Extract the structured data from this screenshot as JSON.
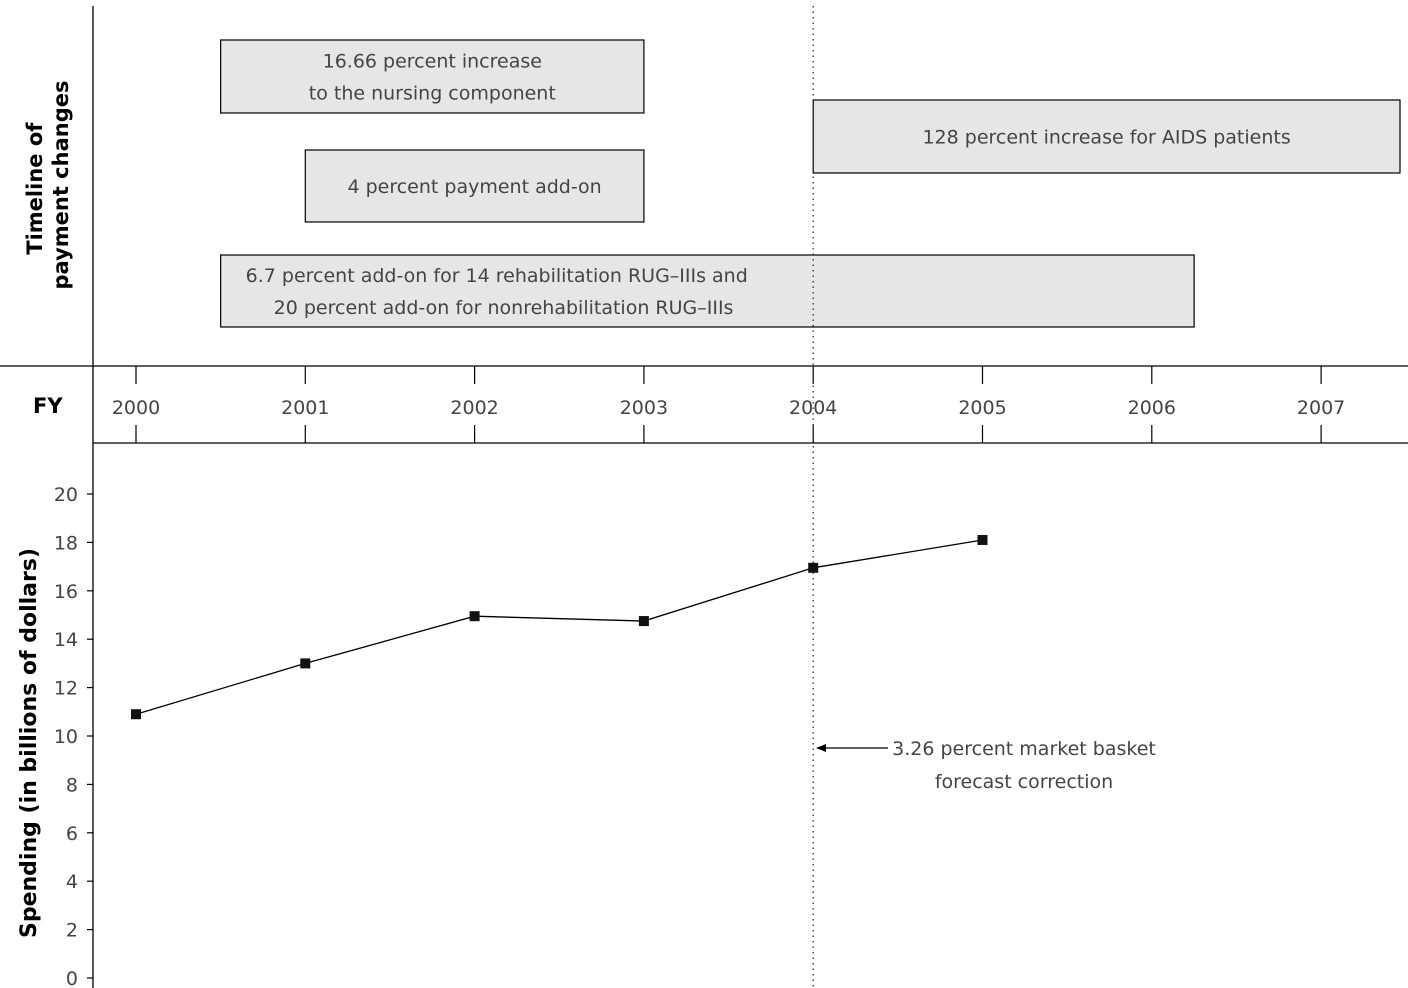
{
  "timeline_title": [
    "Timeline of",
    "payment changes"
  ],
  "fy_label": "FY",
  "y_axis_label": "Spending (in billions of dollars)",
  "timeline_bars": [
    {
      "lines": [
        "16.66 percent increase",
        "to the nursing component"
      ],
      "start": 2000.5,
      "end": 2003.0,
      "align": "center"
    },
    {
      "lines": [
        "128 percent increase for AIDS patients"
      ],
      "start": 2004.0,
      "end": 2007.5,
      "align": "center"
    },
    {
      "lines": [
        "4 percent payment add-on"
      ],
      "start": 2001.0,
      "end": 2003.0,
      "align": "center"
    },
    {
      "lines": [
        "6.7 percent add-on for 14 rehabilitation RUG–IIIs and",
        "20 percent add-on for nonrehabilitation RUG–IIIs"
      ],
      "start": 2000.5,
      "end": 2006.25,
      "align": "left"
    }
  ],
  "annotation": {
    "lines": [
      "3.26 percent market basket",
      "forecast correction"
    ],
    "x": 2004
  },
  "chart_data": {
    "type": "line",
    "x": [
      2000,
      2001,
      2002,
      2003,
      2004,
      2005
    ],
    "series": [
      {
        "values": [
          10.9,
          13.0,
          14.95,
          14.75,
          16.95,
          18.1
        ]
      }
    ],
    "x_ticks": [
      2000,
      2001,
      2002,
      2003,
      2004,
      2005,
      2006,
      2007
    ],
    "ylabel": "Spending (in billions of dollars)",
    "ylim": [
      0,
      20
    ],
    "yticks": [
      0,
      2,
      4,
      6,
      8,
      10,
      12,
      14,
      16,
      18,
      20
    ],
    "grid": false,
    "legend": "none"
  }
}
